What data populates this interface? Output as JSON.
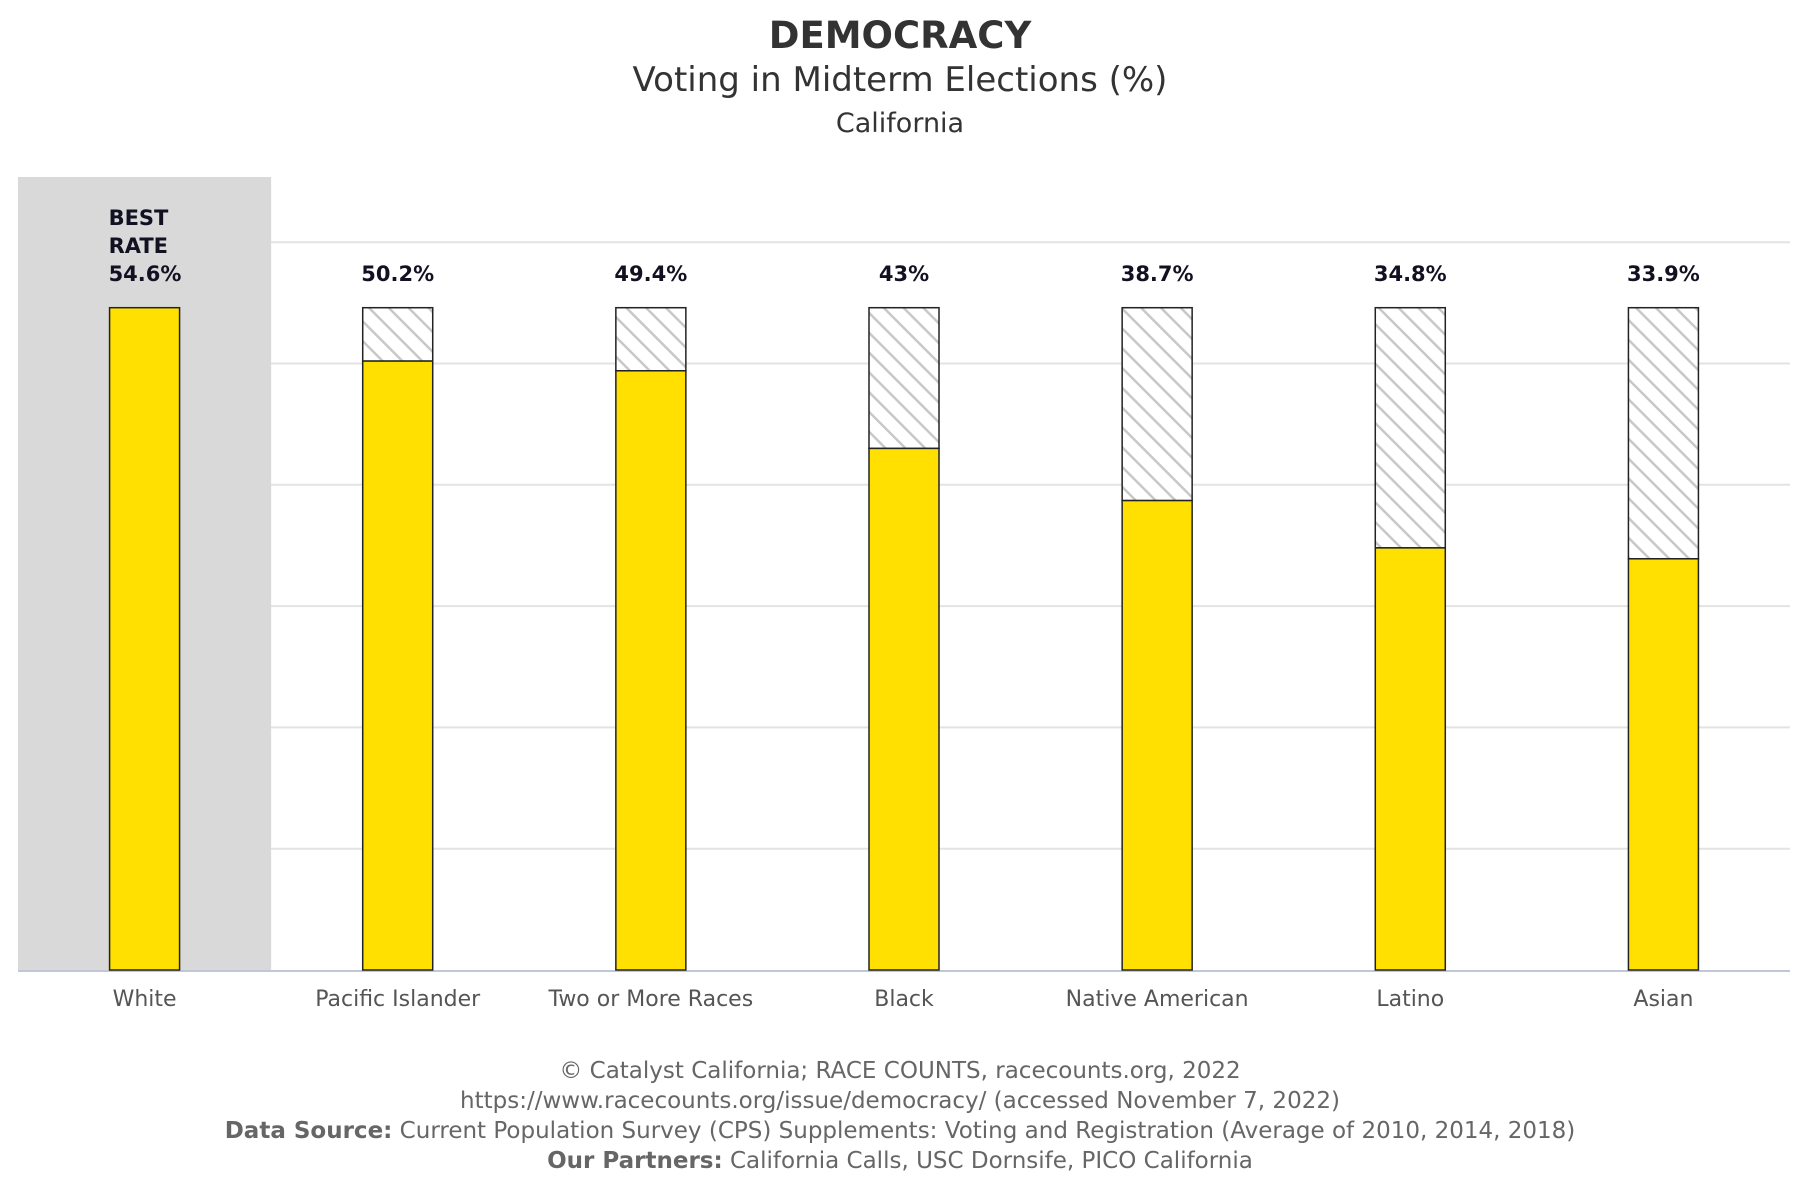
{
  "header": {
    "title": "DEMOCRACY",
    "subtitle": "Voting in Midterm Elections (%)",
    "region": "California"
  },
  "best_label_lines": [
    "BEST",
    "RATE"
  ],
  "colors": {
    "bar": "#ffe000",
    "bar_stroke": "#222222",
    "hatch": "#c8c8c8",
    "highlight_band": "#d9d9d9",
    "gridline": "#e3e3e3",
    "axis_line": "#c0c8d8",
    "value_label": "#111122",
    "tick_label": "#555555"
  },
  "chart_data": {
    "type": "bar",
    "categories": [
      "White",
      "Pacific Islander",
      "Two or More Races",
      "Black",
      "Native American",
      "Latino",
      "Asian"
    ],
    "values": [
      54.6,
      50.2,
      49.4,
      43,
      38.7,
      34.8,
      33.9
    ],
    "value_labels": [
      "54.6%",
      "50.2%",
      "49.4%",
      "43%",
      "38.7%",
      "34.8%",
      "33.9%"
    ],
    "best_rate": 54.6,
    "best_category": "White",
    "ylim": [
      0,
      60
    ],
    "grid": true,
    "xlabel": "",
    "ylabel": ""
  },
  "footer": {
    "line1": "© Catalyst California; RACE COUNTS, racecounts.org, 2022",
    "line2": "https://www.racecounts.org/issue/democracy/ (accessed November 7, 2022)",
    "source_label": "Data Source:",
    "source_text": " Current Population Survey (CPS) Supplements: Voting and Registration (Average of 2010, 2014, 2018)",
    "partners_label": "Our Partners:",
    "partners_text": " California Calls, USC Dornsife, PICO California"
  }
}
